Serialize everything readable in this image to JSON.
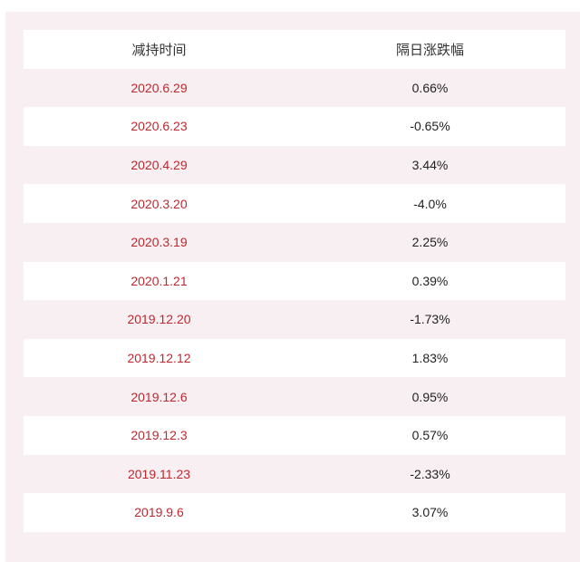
{
  "table": {
    "headers": [
      "减持时间",
      "隔日涨跌幅"
    ],
    "rows": [
      {
        "date": "2020.6.29",
        "change": "0.66%"
      },
      {
        "date": "2020.6.23",
        "change": "-0.65%"
      },
      {
        "date": "2020.4.29",
        "change": "3.44%"
      },
      {
        "date": "2020.3.20",
        "change": "-4.0%"
      },
      {
        "date": "2020.3.19",
        "change": "2.25%"
      },
      {
        "date": "2020.1.21",
        "change": "0.39%"
      },
      {
        "date": "2019.12.20",
        "change": "-1.73%"
      },
      {
        "date": "2019.12.12",
        "change": "1.83%"
      },
      {
        "date": "2019.12.6",
        "change": "0.95%"
      },
      {
        "date": "2019.12.3",
        "change": "0.57%"
      },
      {
        "date": "2019.11.23",
        "change": "-2.33%"
      },
      {
        "date": "2019.9.6",
        "change": "3.07%"
      }
    ]
  },
  "colors": {
    "date_text": "#c0282f",
    "value_text": "#222222",
    "panel_bg": "#f7eff1",
    "row_bg": "#ffffff"
  }
}
